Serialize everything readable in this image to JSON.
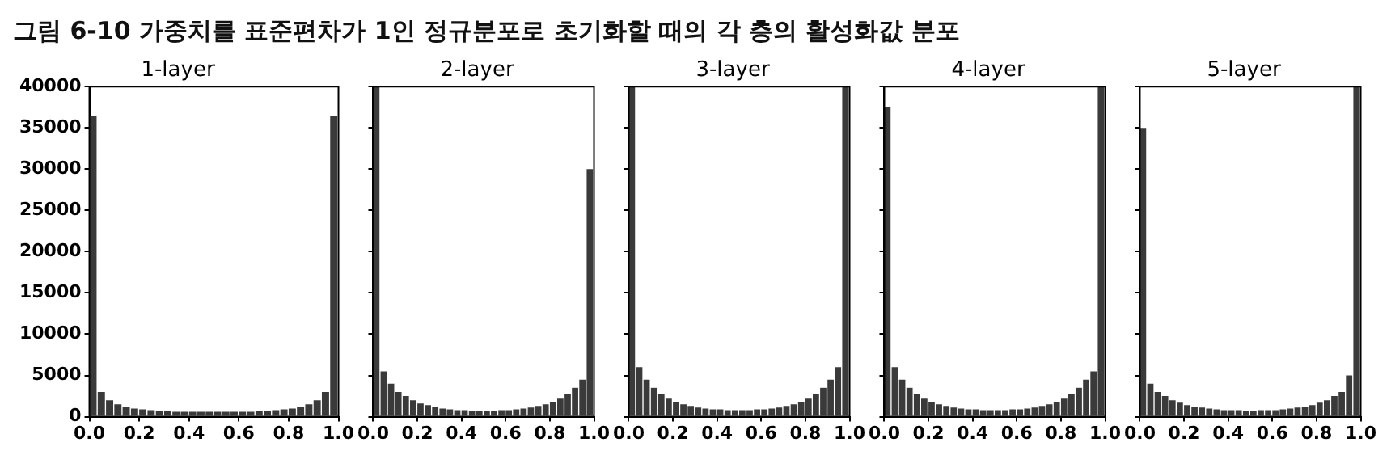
{
  "chart_data": [
    {
      "type": "histogram",
      "title": "1-layer",
      "annotations": [
        "그림 6-10 가중치를 표준편차가 1인 정규분포로 초기화할 때의 각 층의 활성화값 분포"
      ],
      "bins": [
        0,
        0.0333,
        0.0667,
        0.1,
        0.1333,
        0.1667,
        0.2,
        0.2333,
        0.2667,
        0.3,
        0.3333,
        0.3667,
        0.4,
        0.4333,
        0.4667,
        0.5,
        0.5333,
        0.5667,
        0.6,
        0.6333,
        0.6667,
        0.7,
        0.7333,
        0.7667,
        0.8,
        0.8333,
        0.8667,
        0.9,
        0.9333,
        0.9667,
        1
      ],
      "values": [
        36500,
        3000,
        2000,
        1500,
        1200,
        1000,
        900,
        800,
        700,
        700,
        600,
        600,
        600,
        600,
        600,
        600,
        600,
        600,
        600,
        600,
        700,
        700,
        800,
        900,
        1000,
        1200,
        1500,
        2000,
        3000,
        36500
      ],
      "color": "#3a3a3a",
      "xlim": [
        0,
        1
      ],
      "xticks": [
        {
          "value": 0,
          "label": "0.0"
        },
        {
          "value": 0.2,
          "label": "0.2"
        },
        {
          "value": 0.4,
          "label": "0.4"
        },
        {
          "value": 0.6,
          "label": "0.6"
        },
        {
          "value": 0.8,
          "label": "0.8"
        },
        {
          "value": 1,
          "label": "1.0"
        }
      ],
      "ylim": [
        0,
        40000
      ],
      "yticks": [
        0,
        5000,
        10000,
        15000,
        20000,
        25000,
        30000,
        35000,
        40000
      ],
      "grid": false
    },
    {
      "type": "histogram",
      "title": "2-layer",
      "bins": [
        0,
        0.0333,
        0.0667,
        0.1,
        0.1333,
        0.1667,
        0.2,
        0.2333,
        0.2667,
        0.3,
        0.3333,
        0.3667,
        0.4,
        0.4333,
        0.4667,
        0.5,
        0.5333,
        0.5667,
        0.6,
        0.6333,
        0.6667,
        0.7,
        0.7333,
        0.7667,
        0.8,
        0.8333,
        0.8667,
        0.9,
        0.9333,
        0.9667,
        1
      ],
      "values": [
        40000,
        5500,
        4000,
        3000,
        2500,
        2000,
        1600,
        1400,
        1200,
        1000,
        900,
        800,
        800,
        700,
        700,
        700,
        700,
        800,
        800,
        900,
        1000,
        1100,
        1300,
        1500,
        1800,
        2200,
        2700,
        3500,
        4500,
        30000
      ],
      "color": "#3a3a3a",
      "xlim": [
        0,
        1
      ],
      "xticks": [
        {
          "value": 0,
          "label": "0.0"
        },
        {
          "value": 0.2,
          "label": "0.2"
        },
        {
          "value": 0.4,
          "label": "0.4"
        },
        {
          "value": 0.6,
          "label": "0.6"
        },
        {
          "value": 0.8,
          "label": "0.8"
        },
        {
          "value": 1,
          "label": "1.0"
        }
      ],
      "ylim": [
        0,
        40000
      ],
      "yticks": [
        0,
        5000,
        10000,
        15000,
        20000,
        25000,
        30000,
        35000,
        40000
      ],
      "grid": false,
      "tick_labels": "x"
    },
    {
      "type": "histogram",
      "title": "3-layer",
      "bins": [
        0,
        0.0333,
        0.0667,
        0.1,
        0.1333,
        0.1667,
        0.2,
        0.2333,
        0.2667,
        0.3,
        0.3333,
        0.3667,
        0.4,
        0.4333,
        0.4667,
        0.5,
        0.5333,
        0.5667,
        0.6,
        0.6333,
        0.6667,
        0.7,
        0.7333,
        0.7667,
        0.8,
        0.8333,
        0.8667,
        0.9,
        0.9333,
        0.9667,
        1
      ],
      "values": [
        40000,
        6000,
        4500,
        3500,
        2700,
        2200,
        1800,
        1500,
        1300,
        1100,
        1000,
        900,
        900,
        800,
        800,
        800,
        800,
        900,
        900,
        1000,
        1100,
        1300,
        1500,
        1800,
        2200,
        2700,
        3500,
        4500,
        6000,
        40000
      ],
      "color": "#3a3a3a",
      "xlim": [
        0,
        1
      ],
      "xticks": [
        {
          "value": 0,
          "label": "0.0"
        },
        {
          "value": 0.2,
          "label": "0.2"
        },
        {
          "value": 0.4,
          "label": "0.4"
        },
        {
          "value": 0.6,
          "label": "0.6"
        },
        {
          "value": 0.8,
          "label": "0.8"
        },
        {
          "value": 1,
          "label": "1.0"
        }
      ],
      "ylim": [
        0,
        40000
      ],
      "yticks": [
        0,
        5000,
        10000,
        15000,
        20000,
        25000,
        30000,
        35000,
        40000
      ],
      "grid": false,
      "tick_labels": "x"
    },
    {
      "type": "histogram",
      "title": "4-layer",
      "bins": [
        0,
        0.0333,
        0.0667,
        0.1,
        0.1333,
        0.1667,
        0.2,
        0.2333,
        0.2667,
        0.3,
        0.3333,
        0.3667,
        0.4,
        0.4333,
        0.4667,
        0.5,
        0.5333,
        0.5667,
        0.6,
        0.6333,
        0.6667,
        0.7,
        0.7333,
        0.7667,
        0.8,
        0.8333,
        0.8667,
        0.9,
        0.9333,
        0.9667,
        1
      ],
      "values": [
        37500,
        6000,
        4500,
        3500,
        2700,
        2200,
        1800,
        1500,
        1300,
        1100,
        1000,
        900,
        900,
        800,
        800,
        800,
        800,
        900,
        900,
        1000,
        1100,
        1300,
        1500,
        1800,
        2200,
        2700,
        3500,
        4500,
        5500,
        40000
      ],
      "color": "#3a3a3a",
      "xlim": [
        0,
        1
      ],
      "xticks": [
        {
          "value": 0,
          "label": "0.0"
        },
        {
          "value": 0.2,
          "label": "0.2"
        },
        {
          "value": 0.4,
          "label": "0.4"
        },
        {
          "value": 0.6,
          "label": "0.6"
        },
        {
          "value": 0.8,
          "label": "0.8"
        },
        {
          "value": 1,
          "label": "1.0"
        }
      ],
      "ylim": [
        0,
        40000
      ],
      "yticks": [
        0,
        5000,
        10000,
        15000,
        20000,
        25000,
        30000,
        35000,
        40000
      ],
      "grid": false,
      "tick_labels": "x"
    },
    {
      "type": "histogram",
      "title": "5-layer",
      "bins": [
        0,
        0.0333,
        0.0667,
        0.1,
        0.1333,
        0.1667,
        0.2,
        0.2333,
        0.2667,
        0.3,
        0.3333,
        0.3667,
        0.4,
        0.4333,
        0.4667,
        0.5,
        0.5333,
        0.5667,
        0.6,
        0.6333,
        0.6667,
        0.7,
        0.7333,
        0.7667,
        0.8,
        0.8333,
        0.8667,
        0.9,
        0.9333,
        0.9667,
        1
      ],
      "values": [
        35000,
        4000,
        3000,
        2500,
        2000,
        1700,
        1400,
        1200,
        1100,
        1000,
        900,
        800,
        800,
        800,
        700,
        700,
        800,
        800,
        800,
        900,
        1000,
        1100,
        1200,
        1400,
        1700,
        2000,
        2500,
        3000,
        5000,
        40000
      ],
      "color": "#3a3a3a",
      "xlim": [
        0,
        1
      ],
      "xticks": [
        {
          "value": 0,
          "label": "0.0"
        },
        {
          "value": 0.2,
          "label": "0.2"
        },
        {
          "value": 0.4,
          "label": "0.4"
        },
        {
          "value": 0.6,
          "label": "0.6"
        },
        {
          "value": 0.8,
          "label": "0.8"
        },
        {
          "value": 1,
          "label": "1.0"
        }
      ],
      "ylim": [
        0,
        40000
      ],
      "yticks": [
        0,
        5000,
        10000,
        15000,
        20000,
        25000,
        30000,
        35000,
        40000
      ],
      "grid": false,
      "tick_labels": "x"
    }
  ]
}
